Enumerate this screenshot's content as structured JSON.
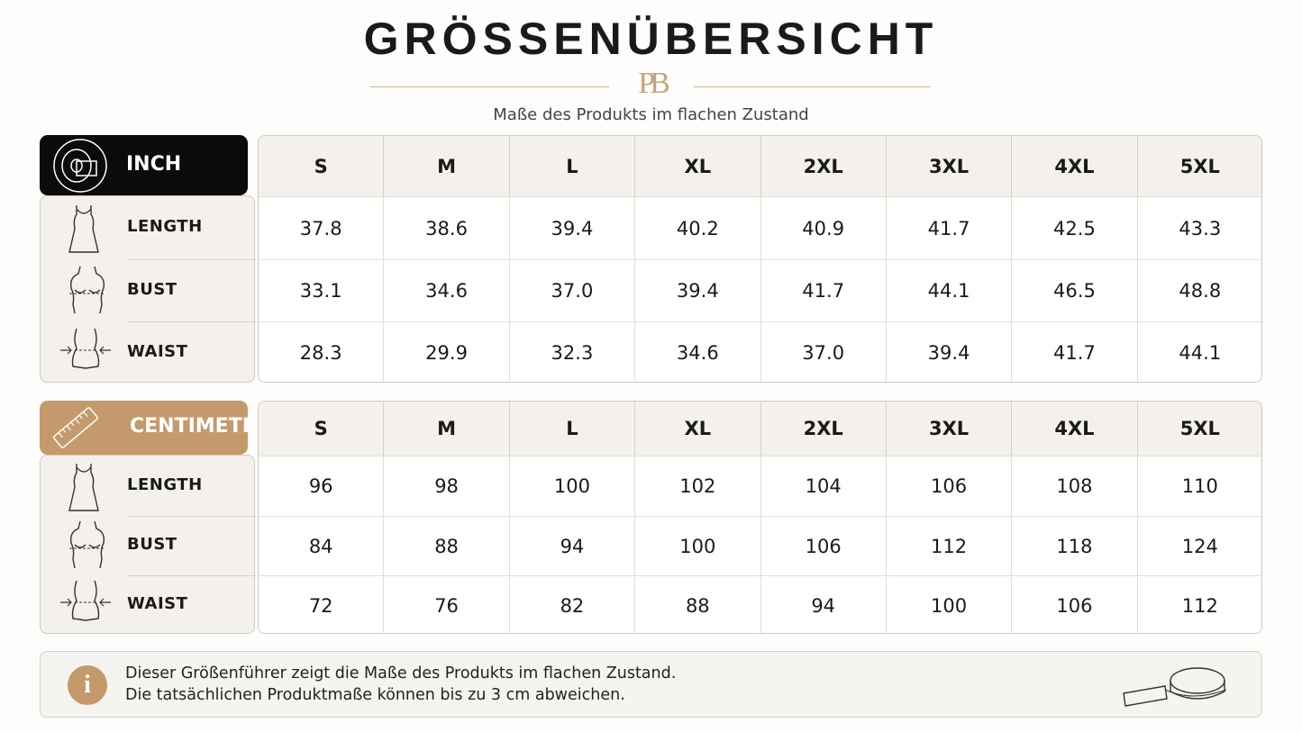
{
  "header": {
    "title": "GRÖSSENÜBERSICHT",
    "logo": "PB",
    "subtitle": "Maße des Produkts im flachen Zustand"
  },
  "tables": [
    {
      "unit": "INCH",
      "sizes": [
        "S",
        "M",
        "L",
        "XL",
        "2XL",
        "3XL",
        "4XL",
        "5XL"
      ],
      "rows": [
        {
          "label": "LENGTH",
          "values": [
            "37.8",
            "38.6",
            "39.4",
            "40.2",
            "40.9",
            "41.7",
            "42.5",
            "43.3"
          ]
        },
        {
          "label": "BUST",
          "values": [
            "33.1",
            "34.6",
            "37.0",
            "39.4",
            "41.7",
            "44.1",
            "46.5",
            "48.8"
          ]
        },
        {
          "label": "WAIST",
          "values": [
            "28.3",
            "29.9",
            "32.3",
            "34.6",
            "37.0",
            "39.4",
            "41.7",
            "44.1"
          ]
        }
      ]
    },
    {
      "unit": "CENTIMETER",
      "sizes": [
        "S",
        "M",
        "L",
        "XL",
        "2XL",
        "3XL",
        "4XL",
        "5XL"
      ],
      "rows": [
        {
          "label": "LENGTH",
          "values": [
            "96",
            "98",
            "100",
            "102",
            "104",
            "106",
            "108",
            "110"
          ]
        },
        {
          "label": "BUST",
          "values": [
            "84",
            "88",
            "94",
            "100",
            "106",
            "112",
            "118",
            "124"
          ]
        },
        {
          "label": "WAIST",
          "values": [
            "72",
            "76",
            "82",
            "88",
            "94",
            "100",
            "106",
            "112"
          ]
        }
      ]
    }
  ],
  "note": {
    "icon": "i",
    "lines": [
      "Dieser Größenführer zeigt die Maße des Produkts im flachen Zustand.",
      "Die tatsächlichen Produktmaße können bis zu 3 cm abweichen."
    ]
  }
}
